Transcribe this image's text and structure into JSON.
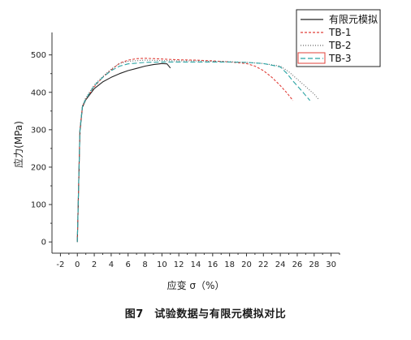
{
  "chart_data": {
    "type": "line",
    "title": "",
    "xlabel": "应变 σ（%）",
    "ylabel": "应力(MPa)",
    "xlim": [
      -3,
      31
    ],
    "ylim": [
      -30,
      560
    ],
    "x_ticks": [
      -2,
      0,
      2,
      4,
      6,
      8,
      10,
      12,
      14,
      16,
      18,
      20,
      22,
      24,
      26,
      28,
      30
    ],
    "y_ticks": [
      0,
      100,
      200,
      300,
      400,
      500
    ],
    "grid": false,
    "legend_position": "top-right",
    "series": [
      {
        "name": "有限元模拟",
        "color": "#222222",
        "dash": "solid",
        "x": [
          0,
          0.3,
          0.6,
          1.0,
          2.0,
          3.0,
          4.0,
          5.0,
          6.0,
          7.0,
          8.0,
          9.0,
          10.0,
          10.6,
          11.0
        ],
        "y": [
          0,
          295,
          360,
          380,
          410,
          428,
          440,
          450,
          458,
          464,
          470,
          474,
          477,
          476,
          465
        ]
      },
      {
        "name": "TB-1",
        "color": "#e0403a",
        "dash": "3,2",
        "x": [
          0,
          0.3,
          0.6,
          1.0,
          2.0,
          3.0,
          4.0,
          5.0,
          6.0,
          7.0,
          8.0,
          10.0,
          12.0,
          14.0,
          16.0,
          18.0,
          20.0,
          21.0,
          22.0,
          23.0,
          24.0,
          24.8,
          25.5
        ],
        "y": [
          0,
          300,
          362,
          382,
          415,
          440,
          460,
          478,
          486,
          490,
          491,
          489,
          487,
          486,
          484,
          481,
          477,
          470,
          458,
          440,
          418,
          398,
          378
        ]
      },
      {
        "name": "TB-2",
        "color": "#666666",
        "dash": "1,2",
        "x": [
          0,
          0.3,
          0.6,
          1.0,
          2.0,
          3.0,
          4.0,
          5.0,
          6.0,
          8.0,
          10.0,
          12.0,
          14.0,
          16.0,
          18.0,
          20.0,
          22.0,
          24.0,
          25.0,
          26.0,
          27.0,
          28.0,
          28.5
        ],
        "y": [
          0,
          300,
          365,
          385,
          420,
          442,
          462,
          477,
          483,
          486,
          485,
          484,
          484,
          483,
          482,
          480,
          477,
          470,
          455,
          435,
          415,
          395,
          382
        ]
      },
      {
        "name": "TB-3",
        "color": "#2aa3a3",
        "dash": "6,3",
        "x": [
          0,
          0.3,
          0.6,
          1.0,
          2.0,
          3.0,
          4.0,
          5.0,
          6.0,
          8.0,
          10.0,
          12.0,
          14.0,
          16.0,
          18.0,
          20.0,
          22.0,
          24.0,
          24.8,
          25.5,
          26.5,
          27.5
        ],
        "y": [
          0,
          298,
          362,
          382,
          418,
          440,
          458,
          470,
          476,
          480,
          481,
          481,
          481,
          481,
          481,
          480,
          477,
          468,
          450,
          430,
          405,
          378
        ]
      }
    ]
  },
  "caption": "图7　试验数据与有限元模拟对比"
}
